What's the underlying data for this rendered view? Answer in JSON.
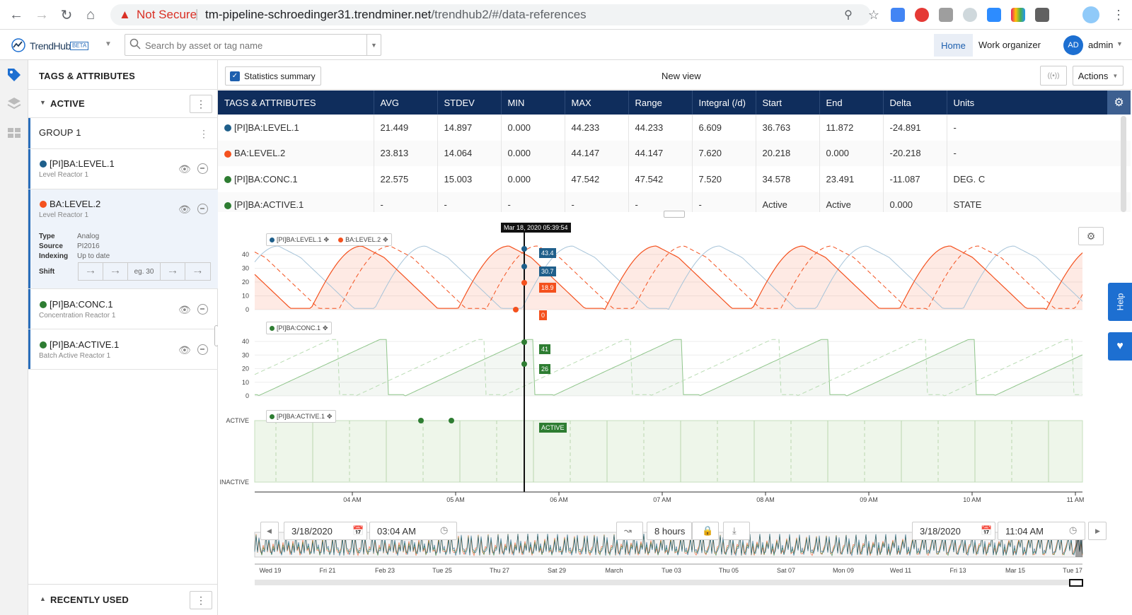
{
  "browser": {
    "url_warning": "Not Secure",
    "url_host": "tm-pipeline-schroedinger31.trendminer.net",
    "url_path": "/trendhub2/#/data-references"
  },
  "app": {
    "logo": "TrendHub",
    "logo_badge": "BETA",
    "search_placeholder": "Search by asset or tag name",
    "nav_home": "Home",
    "nav_work": "Work organizer",
    "avatar_initials": "AD",
    "user": "admin"
  },
  "left": {
    "title": "TAGS & ATTRIBUTES",
    "section": "ACTIVE",
    "group": "GROUP 1",
    "tags": [
      {
        "name": "[PI]BA:LEVEL.1",
        "desc": "Level Reactor 1",
        "color": "#1f5f8b"
      },
      {
        "name": "BA:LEVEL.2",
        "desc": "Level Reactor 1",
        "color": "#f4511e"
      },
      {
        "name": "[PI]BA:CONC.1",
        "desc": "Concentration Reactor 1",
        "color": "#2e7d32"
      },
      {
        "name": "[PI]BA:ACTIVE.1",
        "desc": "Batch Active Reactor 1",
        "color": "#2e7d32"
      }
    ],
    "props": {
      "type_k": "Type",
      "type_v": "Analog",
      "source_k": "Source",
      "source_v": "PI2016",
      "indexing_k": "Indexing",
      "indexing_v": "Up to date",
      "shift_k": "Shift",
      "shift_placeholder": "eg. 30"
    },
    "recent": "RECENTLY USED"
  },
  "toolbar": {
    "stats_label": "Statistics summary",
    "view_name": "New view",
    "actions": "Actions"
  },
  "stats": {
    "headers": [
      "TAGS & ATTRIBUTES",
      "AVG",
      "STDEV",
      "MIN",
      "MAX",
      "Range",
      "Integral (/d)",
      "Start",
      "End",
      "Delta",
      "Units"
    ],
    "rows": [
      [
        "[PI]BA:LEVEL.1",
        "21.449",
        "14.897",
        "0.000",
        "44.233",
        "44.233",
        "6.609",
        "36.763",
        "11.872",
        "-24.891",
        "-"
      ],
      [
        "BA:LEVEL.2",
        "23.813",
        "14.064",
        "0.000",
        "44.147",
        "44.147",
        "7.620",
        "20.218",
        "0.000",
        "-20.218",
        "-"
      ],
      [
        "[PI]BA:CONC.1",
        "22.575",
        "15.003",
        "0.000",
        "47.542",
        "47.542",
        "7.520",
        "34.578",
        "23.491",
        "-11.087",
        "DEG. C"
      ],
      [
        "[PI]BA:ACTIVE.1",
        "-",
        "-",
        "-",
        "-",
        "-",
        "-",
        "Active",
        "Active",
        "0.000",
        "STATE"
      ]
    ]
  },
  "chart": {
    "cursor_time": "Mar 18, 2020 05:39:54",
    "legend1": [
      "[PI]BA:LEVEL.1",
      "BA:LEVEL.2"
    ],
    "legend2": "[PI]BA:CONC.1",
    "legend3": "[PI]BA:ACTIVE.1",
    "cursor_values": [
      "43.4",
      "30.7",
      "18.9",
      "0",
      "41",
      "26",
      "ACTIVE"
    ],
    "y_ticks": [
      "40",
      "30",
      "20",
      "10",
      "0"
    ],
    "state_ticks": [
      "ACTIVE",
      "INACTIVE"
    ],
    "x_ticks": [
      "04 AM",
      "05 AM",
      "06 AM",
      "07 AM",
      "08 AM",
      "09 AM",
      "10 AM",
      "11 AM"
    ],
    "overview_ticks": [
      "Wed 19",
      "Fri 21",
      "Feb 23",
      "Tue 25",
      "Thu 27",
      "Sat 29",
      "March",
      "Tue 03",
      "Thu 05",
      "Sat 07",
      "Mon 09",
      "Wed 11",
      "Fri 13",
      "Mar 15",
      "Tue 17"
    ]
  },
  "timebar": {
    "start_date": "3/18/2020",
    "start_time": "03:04 AM",
    "duration": "8 hours",
    "end_date": "3/18/2020",
    "end_time": "11:04 AM"
  },
  "side_tab": "Help"
}
